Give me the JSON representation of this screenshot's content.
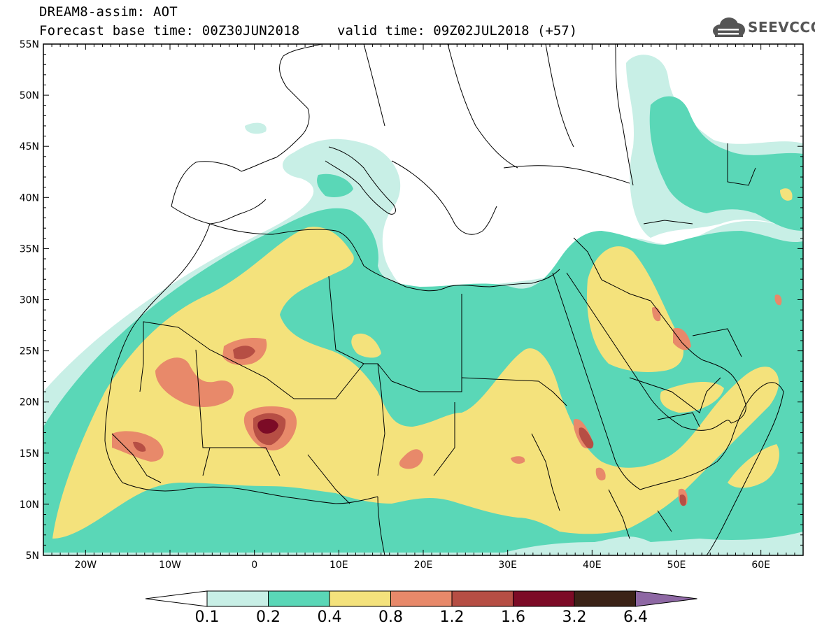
{
  "header": {
    "line1": "DREAM8-assim: AOT",
    "line2": "Forecast base time: 00Z30JUN2018",
    "valid": "valid time: 09Z02JUL2018 (+57)"
  },
  "logo": {
    "text": "SEEVCCC",
    "icon": "cloud-icon"
  },
  "map": {
    "lat_labels": [
      "55N",
      "50N",
      "45N",
      "40N",
      "35N",
      "30N",
      "25N",
      "20N",
      "15N",
      "10N",
      "5N"
    ],
    "lon_labels": [
      "20W",
      "10W",
      "0",
      "10E",
      "20E",
      "30E",
      "40E",
      "50E",
      "60E"
    ],
    "extent": {
      "lon_min": -25,
      "lon_max": 65,
      "lat_min": 5,
      "lat_max": 55
    },
    "colors": {
      "level_0_1": "#c8efe6",
      "level_0_2": "#5ad7b7",
      "level_0_4": "#f4e27c",
      "level_0_8": "#e8896a",
      "level_1_2": "#b64e44",
      "level_1_6": "#7c0b26",
      "level_3_2": "#3b2317",
      "level_6_4": "#8e68a4"
    }
  },
  "colorbar": {
    "labels": [
      "0.1",
      "0.2",
      "0.4",
      "0.8",
      "1.2",
      "1.6",
      "3.2",
      "6.4"
    ],
    "colors": [
      "#c8efe6",
      "#5ad7b7",
      "#f4e27c",
      "#e8896a",
      "#b64e44",
      "#7c0b26",
      "#3b2317",
      "#8e68a4"
    ]
  }
}
